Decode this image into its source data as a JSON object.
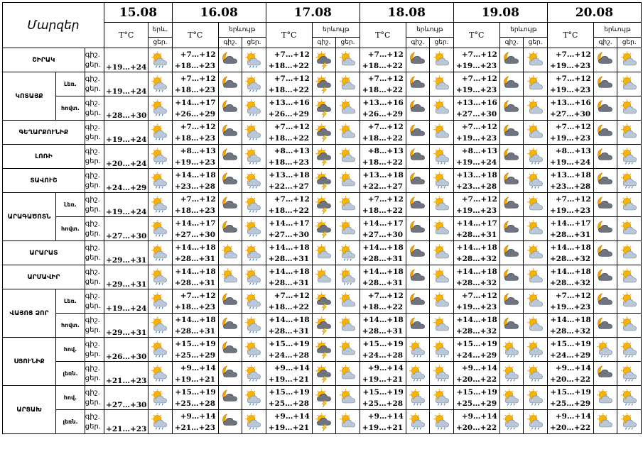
{
  "header": {
    "corner": "Մարզեր",
    "dates": [
      "15.08",
      "16.08",
      "17.08",
      "18.08",
      "19.08",
      "20.08"
    ],
    "temp_label": "T°C",
    "phen_first": "երև.",
    "phen_label": "երևույթ",
    "night": "գիշ.",
    "day": "ցեր."
  },
  "row_labels": {
    "night": "գիշ.",
    "day": "ցեր."
  },
  "regions": [
    {
      "name": "ՇԻՐԱԿ",
      "subs": [
        {
          "sub": "",
          "first": "+19…+24",
          "days": [
            {
              "n": "+7…+12",
              "d": "+18…+23",
              "ni": "moon-cloud-icon",
              "di": "sun-rain-icon"
            },
            {
              "n": "+7…+12",
              "d": "+18…+22",
              "ni": "thunder-icon",
              "di": "sun-cloud-icon"
            },
            {
              "n": "+7…+12",
              "d": "+18…+22",
              "ni": "moon-cloud-icon",
              "di": "sun-cloud-icon"
            },
            {
              "n": "+7…+12",
              "d": "+19…+23",
              "ni": "moon-cloud-icon",
              "di": "sun-cloud-icon"
            },
            {
              "n": "+7…+12",
              "d": "+19…+23",
              "ni": "moon-cloud-icon",
              "di": "sun-cloud-icon"
            }
          ]
        }
      ]
    },
    {
      "name": "ԿՈՏԱՅՔ",
      "subs": [
        {
          "sub": "Լեռ.",
          "first": "+19…+24",
          "days": [
            {
              "n": "+7…+12",
              "d": "+18…+23",
              "ni": "moon-cloud-icon",
              "di": "sun-rain-icon"
            },
            {
              "n": "+7…+12",
              "d": "+18…+22",
              "ni": "thunder-icon",
              "di": "sun-cloud-icon"
            },
            {
              "n": "+7…+12",
              "d": "+18…+22",
              "ni": "moon-cloud-icon",
              "di": "sun-cloud-icon"
            },
            {
              "n": "+7…+12",
              "d": "+19…+23",
              "ni": "moon-cloud-icon",
              "di": "sun-cloud-icon"
            },
            {
              "n": "+7…+12",
              "d": "+19…+23",
              "ni": "moon-cloud-icon",
              "di": "sun-cloud-icon"
            }
          ]
        },
        {
          "sub": "հովտ.",
          "first": "+28…+30",
          "days": [
            {
              "n": "+14…+17",
              "d": "+26…+29",
              "ni": "moon-cloud-icon",
              "di": "sun-rain-icon"
            },
            {
              "n": "+13…+16",
              "d": "+26…+29",
              "ni": "thunder-icon",
              "di": "sun-cloud-icon"
            },
            {
              "n": "+13…+16",
              "d": "+26…+29",
              "ni": "moon-cloud-icon",
              "di": "sun-cloud-icon"
            },
            {
              "n": "+13…+16",
              "d": "+27…+30",
              "ni": "moon-cloud-icon",
              "di": "sun-cloud-icon"
            },
            {
              "n": "+13…+16",
              "d": "+27…+30",
              "ni": "moon-cloud-icon",
              "di": "sun-cloud-icon"
            }
          ]
        }
      ]
    },
    {
      "name": "ԳԵՂԱՐՔՈՒՆԻՔ",
      "subs": [
        {
          "sub": "",
          "first": "+19…+24",
          "days": [
            {
              "n": "+7…+12",
              "d": "+18…+23",
              "ni": "moon-cloud-icon",
              "di": "sun-rain-icon"
            },
            {
              "n": "+7…+12",
              "d": "+18…+22",
              "ni": "thunder-icon",
              "di": "sun-cloud-icon"
            },
            {
              "n": "+7…+12",
              "d": "+18…+22",
              "ni": "moon-cloud-icon",
              "di": "sun-cloud-icon"
            },
            {
              "n": "+7…+12",
              "d": "+19…+23",
              "ni": "moon-cloud-icon",
              "di": "sun-cloud-icon"
            },
            {
              "n": "+7…+12",
              "d": "+19…+23",
              "ni": "moon-cloud-icon",
              "di": "sun-cloud-icon"
            }
          ]
        }
      ]
    },
    {
      "name": "ԼՈՌԻ",
      "subs": [
        {
          "sub": "",
          "first": "+20…+24",
          "days": [
            {
              "n": "+8…+13",
              "d": "+19…+23",
              "ni": "moon-cloud-icon",
              "di": "sun-rain-icon"
            },
            {
              "n": "+8…+13",
              "d": "+18…+23",
              "ni": "thunder-icon",
              "di": "sun-cloud-icon"
            },
            {
              "n": "+8…+13",
              "d": "+18…+22",
              "ni": "moon-cloud-icon",
              "di": "sun-rain-icon"
            },
            {
              "n": "+8…+13",
              "d": "+19…+24",
              "ni": "moon-cloud-icon",
              "di": "sun-rain-icon"
            },
            {
              "n": "+8…+13",
              "d": "+19…+24",
              "ni": "moon-cloud-icon",
              "di": "sun-rain-icon"
            }
          ]
        }
      ]
    },
    {
      "name": "ՏԱՎՈՒՇ",
      "subs": [
        {
          "sub": "",
          "first": "+24…+29",
          "days": [
            {
              "n": "+14…+18",
              "d": "+23…+28",
              "ni": "moon-cloud-icon",
              "di": "sun-rain-icon"
            },
            {
              "n": "+13…+18",
              "d": "+22…+27",
              "ni": "thunder-icon",
              "di": "sun-cloud-icon"
            },
            {
              "n": "+13…+18",
              "d": "+22…+27",
              "ni": "moon-cloud-icon",
              "di": "sun-rain-icon"
            },
            {
              "n": "+13…+18",
              "d": "+23…+28",
              "ni": "moon-cloud-icon",
              "di": "sun-rain-icon"
            },
            {
              "n": "+13…+18",
              "d": "+23…+28",
              "ni": "moon-cloud-icon",
              "di": "sun-rain-icon"
            }
          ]
        }
      ]
    },
    {
      "name": "ԱՐԱԳԱԾՈՏՆ",
      "subs": [
        {
          "sub": "Լեռ.",
          "first": "+19…+24",
          "days": [
            {
              "n": "+7…+12",
              "d": "+18…+23",
              "ni": "moon-cloud-icon",
              "di": "sun-rain-icon"
            },
            {
              "n": "+7…+12",
              "d": "+18…+22",
              "ni": "thunder-icon",
              "di": "sun-cloud-icon"
            },
            {
              "n": "+7…+12",
              "d": "+18…+22",
              "ni": "moon-cloud-icon",
              "di": "sun-cloud-icon"
            },
            {
              "n": "+7…+12",
              "d": "+19…+23",
              "ni": "moon-cloud-icon",
              "di": "sun-cloud-icon"
            },
            {
              "n": "+7…+12",
              "d": "+19…+23",
              "ni": "moon-cloud-icon",
              "di": "sun-cloud-icon"
            }
          ]
        },
        {
          "sub": "հովտ.",
          "first": "+27…+30",
          "days": [
            {
              "n": "+14…+17",
              "d": "+27…+30",
              "ni": "moon-cloud-icon",
              "di": "sun-rain-icon"
            },
            {
              "n": "+14…+17",
              "d": "+27…+30",
              "ni": "thunder-icon",
              "di": "sun-cloud-icon"
            },
            {
              "n": "+14…+17",
              "d": "+27…+30",
              "ni": "moon-cloud-icon",
              "di": "sun-cloud-icon"
            },
            {
              "n": "+14…+17",
              "d": "+28…+31",
              "ni": "moon-cloud-icon",
              "di": "sun-cloud-icon"
            },
            {
              "n": "+14…+17",
              "d": "+28…+31",
              "ni": "moon-cloud-icon",
              "di": "sun-cloud-icon"
            }
          ]
        }
      ]
    },
    {
      "name": "ԱՐԱՐԱՏ",
      "subs": [
        {
          "sub": "",
          "first": "+29…+31",
          "days": [
            {
              "n": "+14…+18",
              "d": "+28…+31",
              "ni": "sun-cloud-icon",
              "di": "sun-rain-icon"
            },
            {
              "n": "+14…+18",
              "d": "+28…+31",
              "ni": "sun-cloud-icon",
              "di": "sun-rain-icon"
            },
            {
              "n": "+14…+18",
              "d": "+28…+31",
              "ni": "moon-cloud-icon",
              "di": "sun-cloud-icon"
            },
            {
              "n": "+14…+18",
              "d": "+28…+32",
              "ni": "moon-cloud-icon",
              "di": "sun-cloud-icon"
            },
            {
              "n": "+14…+18",
              "d": "+28…+32",
              "ni": "moon-cloud-icon",
              "di": "sun-cloud-icon"
            }
          ]
        }
      ]
    },
    {
      "name": "ԱՐՄԱՎԻՐ",
      "subs": [
        {
          "sub": "",
          "first": "+29…+31",
          "days": [
            {
              "n": "+14…+18",
              "d": "+28…+31",
              "ni": "sun-cloud-icon",
              "di": "sun-rain-icon"
            },
            {
              "n": "+14…+18",
              "d": "+28…+31",
              "ni": "sun-cloud-icon",
              "di": "sun-rain-icon"
            },
            {
              "n": "+14…+18",
              "d": "+28…+31",
              "ni": "moon-cloud-icon",
              "di": "sun-cloud-icon"
            },
            {
              "n": "+14…+18",
              "d": "+28…+32",
              "ni": "moon-cloud-icon",
              "di": "sun-cloud-icon"
            },
            {
              "n": "+14…+18",
              "d": "+28…+32",
              "ni": "moon-cloud-icon",
              "di": "sun-cloud-icon"
            }
          ]
        }
      ]
    },
    {
      "name": "ՎԱՅՈՑ ՁՈՐ",
      "subs": [
        {
          "sub": "Լեռ.",
          "first": "+19…+24",
          "days": [
            {
              "n": "+7…+12",
              "d": "+18…+23",
              "ni": "moon-cloud-icon",
              "di": "sun-rain-icon"
            },
            {
              "n": "+7…+12",
              "d": "+18…+22",
              "ni": "thunder-icon",
              "di": "sun-cloud-icon"
            },
            {
              "n": "+7…+12",
              "d": "+18…+22",
              "ni": "moon-cloud-icon",
              "di": "sun-cloud-icon"
            },
            {
              "n": "+7…+12",
              "d": "+19…+23",
              "ni": "moon-cloud-icon",
              "di": "sun-cloud-icon"
            },
            {
              "n": "+7…+12",
              "d": "+19…+23",
              "ni": "moon-cloud-icon",
              "di": "sun-cloud-icon"
            }
          ]
        },
        {
          "sub": "հովտ.",
          "first": "+29…+31",
          "days": [
            {
              "n": "+14…+18",
              "d": "+28…+31",
              "ni": "moon-cloud-icon",
              "di": "sun-rain-icon"
            },
            {
              "n": "+14…+18",
              "d": "+28…+31",
              "ni": "thunder-icon",
              "di": "sun-cloud-icon"
            },
            {
              "n": "+14…+18",
              "d": "+28…+31",
              "ni": "moon-cloud-icon",
              "di": "sun-cloud-icon"
            },
            {
              "n": "+14…+18",
              "d": "+28…+32",
              "ni": "moon-cloud-icon",
              "di": "sun-cloud-icon"
            },
            {
              "n": "+14…+18",
              "d": "+28…+32",
              "ni": "moon-cloud-icon",
              "di": "sun-cloud-icon"
            }
          ]
        }
      ]
    },
    {
      "name": "ՍՅՈՒՆԻՔ",
      "subs": [
        {
          "sub": "հով.",
          "first": "+26…+30",
          "days": [
            {
              "n": "+15…+19",
              "d": "+25…+29",
              "ni": "moon-cloud-icon",
              "di": "sun-rain-icon"
            },
            {
              "n": "+15…+19",
              "d": "+24…+28",
              "ni": "thunder-icon",
              "di": "sun-cloud-icon"
            },
            {
              "n": "+15…+19",
              "d": "+24…+28",
              "ni": "sun-rain-icon",
              "di": "sun-rain-icon"
            },
            {
              "n": "+15…+19",
              "d": "+24…+29",
              "ni": "sun-rain-icon",
              "di": "sun-rain-icon"
            },
            {
              "n": "+15…+19",
              "d": "+24…+29",
              "ni": "sun-rain-icon",
              "di": "sun-rain-icon"
            }
          ]
        },
        {
          "sub": "լեռն.",
          "first": "+21…+23",
          "days": [
            {
              "n": "+9…+14",
              "d": "+19…+21",
              "ni": "moon-cloud-icon",
              "di": "sun-rain-icon"
            },
            {
              "n": "+9…+14",
              "d": "+19…+21",
              "ni": "thunder-icon",
              "di": "sun-cloud-icon"
            },
            {
              "n": "+9…+14",
              "d": "+19…+21",
              "ni": "sun-rain-icon",
              "di": "sun-rain-icon"
            },
            {
              "n": "+9…+14",
              "d": "+20…+22",
              "ni": "sun-rain-icon",
              "di": "sun-rain-icon"
            },
            {
              "n": "+9…+14",
              "d": "+20…+22",
              "ni": "moon-cloud-icon",
              "di": "sun-rain-icon"
            }
          ]
        }
      ]
    },
    {
      "name": "ԱՐՑԱԽ",
      "subs": [
        {
          "sub": "հով.",
          "first": "+27…+30",
          "days": [
            {
              "n": "+15…+19",
              "d": "+25…+28",
              "ni": "moon-cloud-icon",
              "di": "sun-rain-icon"
            },
            {
              "n": "+15…+19",
              "d": "+25…+28",
              "ni": "thunder-icon",
              "di": "sun-cloud-icon"
            },
            {
              "n": "+15…+19",
              "d": "+25…+28",
              "ni": "sun-rain-icon",
              "di": "sun-rain-icon"
            },
            {
              "n": "+15…+19",
              "d": "+25…+29",
              "ni": "sun-rain-icon",
              "di": "sun-rain-icon"
            },
            {
              "n": "+15…+19",
              "d": "+25…+29",
              "ni": "sun-cloud-icon",
              "di": "sun-rain-icon"
            }
          ]
        },
        {
          "sub": "լեռն.",
          "first": "+21…+23",
          "days": [
            {
              "n": "+9…+14",
              "d": "+21…+23",
              "ni": "moon-cloud-icon",
              "di": "sun-rain-icon"
            },
            {
              "n": "+9…+14",
              "d": "+19…+21",
              "ni": "thunder-icon",
              "di": "sun-cloud-icon"
            },
            {
              "n": "+9…+14",
              "d": "+19…+21",
              "ni": "sun-rain-icon",
              "di": "sun-rain-icon"
            },
            {
              "n": "+9…+14",
              "d": "+20…+22",
              "ni": "sun-rain-icon",
              "di": "sun-rain-icon"
            },
            {
              "n": "+9…+14",
              "d": "+20…+22",
              "ni": "sun-cloud-icon",
              "di": "sun-rain-icon"
            }
          ]
        }
      ]
    }
  ]
}
